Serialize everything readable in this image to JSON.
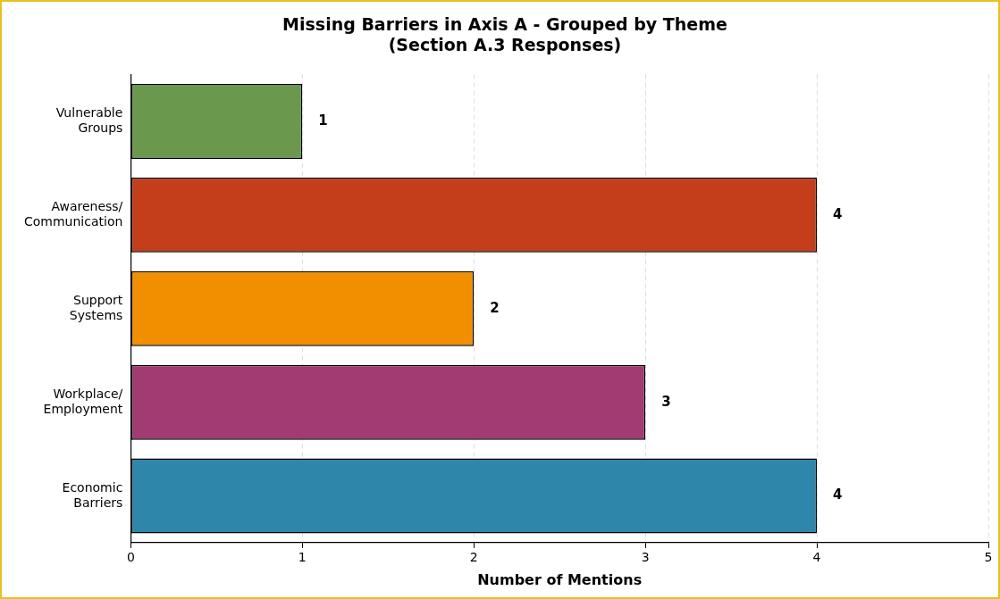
{
  "chart_data": {
    "type": "bar",
    "orientation": "horizontal",
    "title": "Missing Barriers in Axis A - Grouped by Theme\n(Section A.3 Responses)",
    "xlabel": "Number of Mentions",
    "categories": [
      "Vulnerable Groups",
      "Awareness/ Communication",
      "Support Systems",
      "Workplace/ Employment",
      "Economic Barriers"
    ],
    "values": [
      1,
      4,
      2,
      3,
      4
    ],
    "colors": [
      "#6a994e",
      "#c43e1c",
      "#f18f01",
      "#a23b72",
      "#2e86ab"
    ],
    "xlim": [
      0,
      5
    ],
    "xticks": [
      0,
      1,
      2,
      3,
      4,
      5
    ],
    "grid": "x",
    "data_labels": true,
    "legend": false
  }
}
